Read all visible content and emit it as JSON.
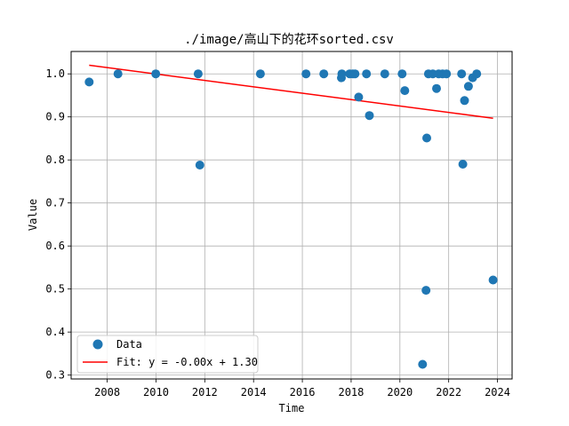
{
  "chart_data": {
    "type": "scatter",
    "title": "./image/高山下的花环sorted.csv",
    "xlabel": "Time",
    "ylabel": "Value",
    "xlim": [
      2006.52,
      2024.6
    ],
    "ylim": [
      0.291,
      1.052
    ],
    "xticks": [
      2008,
      2010,
      2012,
      2014,
      2016,
      2018,
      2020,
      2022,
      2024
    ],
    "xtick_labels": [
      "2008",
      "2010",
      "2012",
      "2014",
      "2016",
      "2018",
      "2020",
      "2022",
      "2024"
    ],
    "yticks": [
      0.3,
      0.4,
      0.5,
      0.6,
      0.7,
      0.8,
      0.9,
      1.0
    ],
    "ytick_labels": [
      "0.3",
      "0.4",
      "0.5",
      "0.6",
      "0.7",
      "0.8",
      "0.9",
      "1.0"
    ],
    "grid": true,
    "legend_position": "lower-left",
    "series": [
      {
        "name": "Data",
        "kind": "scatter",
        "color": "#1f77b4",
        "points": [
          {
            "x": 2007.26,
            "y": 0.981
          },
          {
            "x": 2008.44,
            "y": 1.0
          },
          {
            "x": 2009.99,
            "y": 1.0
          },
          {
            "x": 2011.73,
            "y": 1.0
          },
          {
            "x": 2011.8,
            "y": 0.788
          },
          {
            "x": 2014.28,
            "y": 1.0
          },
          {
            "x": 2016.15,
            "y": 1.0
          },
          {
            "x": 2016.88,
            "y": 1.0
          },
          {
            "x": 2017.6,
            "y": 0.991
          },
          {
            "x": 2017.62,
            "y": 1.0
          },
          {
            "x": 2017.94,
            "y": 1.0
          },
          {
            "x": 2018.07,
            "y": 1.0
          },
          {
            "x": 2018.16,
            "y": 1.0
          },
          {
            "x": 2018.31,
            "y": 0.946
          },
          {
            "x": 2018.63,
            "y": 1.0
          },
          {
            "x": 2018.75,
            "y": 0.903
          },
          {
            "x": 2019.38,
            "y": 1.0
          },
          {
            "x": 2020.09,
            "y": 1.0
          },
          {
            "x": 2020.2,
            "y": 0.961
          },
          {
            "x": 2020.93,
            "y": 0.325
          },
          {
            "x": 2021.07,
            "y": 0.497
          },
          {
            "x": 2021.1,
            "y": 0.851
          },
          {
            "x": 2021.17,
            "y": 1.0
          },
          {
            "x": 2021.35,
            "y": 1.0
          },
          {
            "x": 2021.5,
            "y": 0.966
          },
          {
            "x": 2021.59,
            "y": 1.0
          },
          {
            "x": 2021.75,
            "y": 1.0
          },
          {
            "x": 2021.91,
            "y": 1.0
          },
          {
            "x": 2022.53,
            "y": 1.0
          },
          {
            "x": 2022.58,
            "y": 0.79
          },
          {
            "x": 2022.65,
            "y": 0.938
          },
          {
            "x": 2022.81,
            "y": 0.971
          },
          {
            "x": 2022.98,
            "y": 0.991
          },
          {
            "x": 2023.15,
            "y": 1.0
          },
          {
            "x": 2023.82,
            "y": 0.521
          }
        ]
      },
      {
        "name": "Fit: y = -0.00x + 1.30",
        "kind": "line",
        "color": "#ff0000",
        "points": [
          {
            "x": 2007.26,
            "y": 1.02
          },
          {
            "x": 2023.82,
            "y": 0.897
          }
        ]
      }
    ]
  }
}
